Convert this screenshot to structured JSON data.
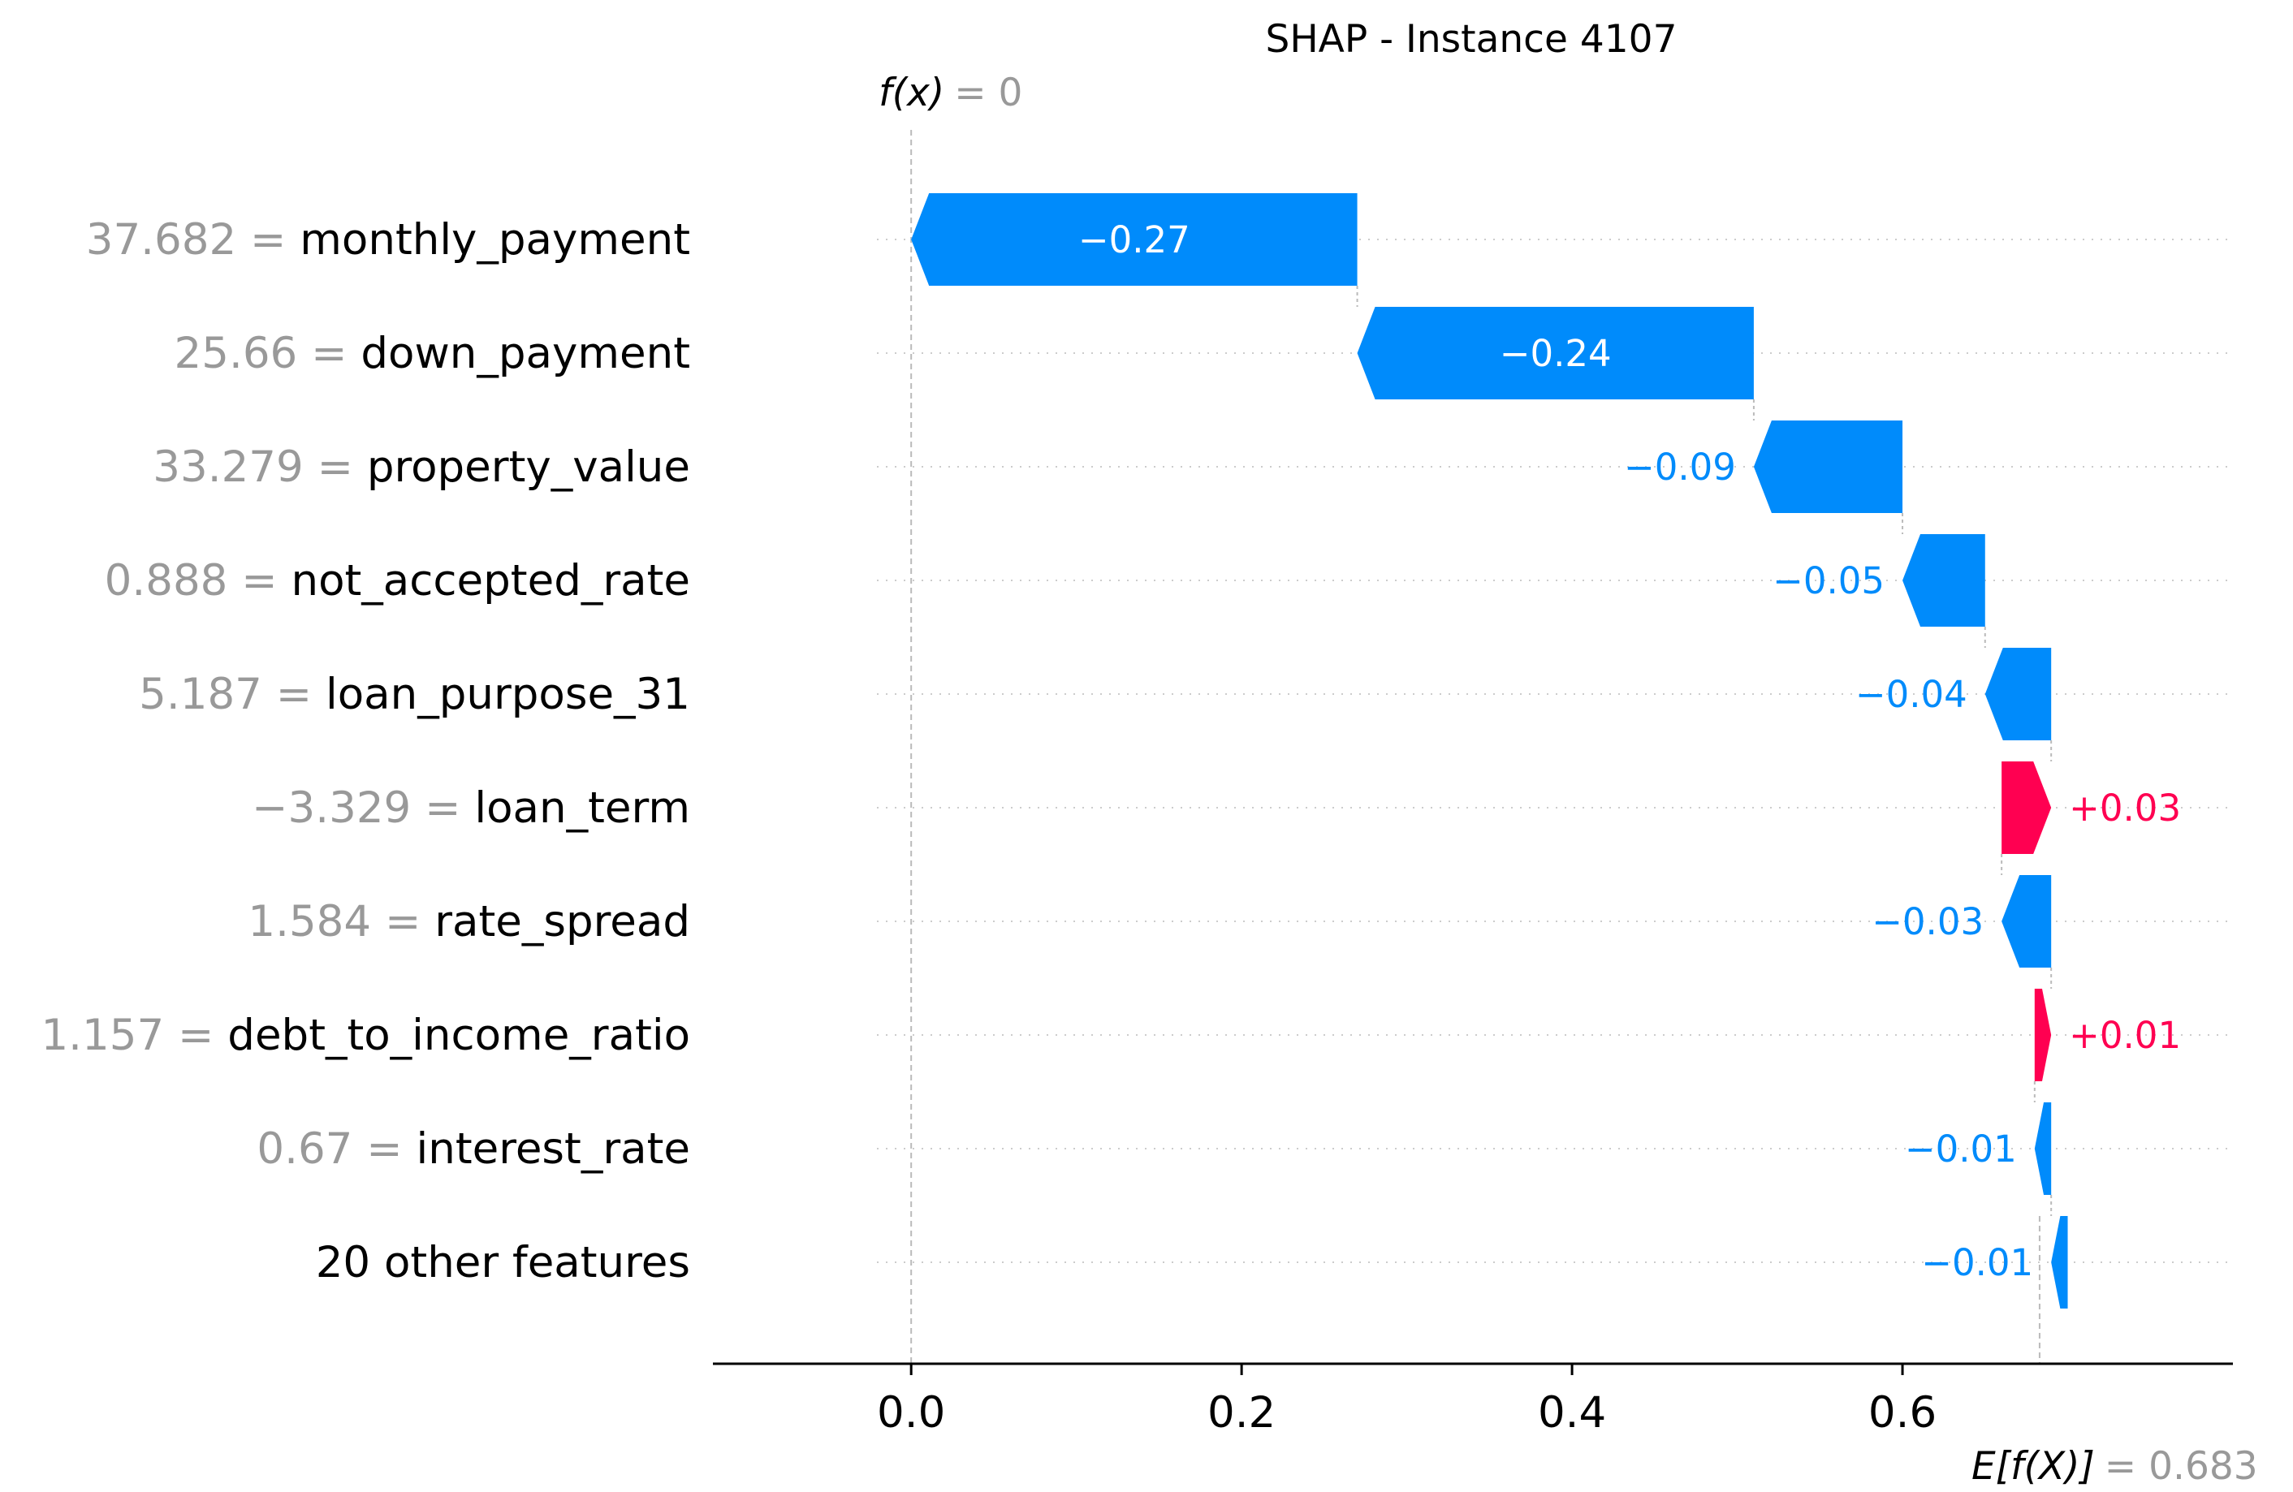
{
  "chart_data": {
    "type": "waterfall",
    "title": "SHAP - Instance 4107",
    "fx": {
      "prefix": "f(x)",
      "equals": "= ",
      "value": "0"
    },
    "efx": {
      "prefix": "E[f(X)]",
      "equals": "= ",
      "value": "0.683"
    },
    "base_value": 0.683,
    "output_value": 0.0,
    "xlim": [
      -0.12,
      0.8
    ],
    "xticks": [
      {
        "value": 0.0,
        "label": "0.0"
      },
      {
        "value": 0.2,
        "label": "0.2"
      },
      {
        "value": 0.4,
        "label": "0.4"
      },
      {
        "value": 0.6,
        "label": "0.6"
      }
    ],
    "features": [
      {
        "feature_value": "37.682 = ",
        "name": "monthly_payment",
        "contribution": -0.27,
        "label": "−0.27"
      },
      {
        "feature_value": "25.66 = ",
        "name": "down_payment",
        "contribution": -0.24,
        "label": "−0.24"
      },
      {
        "feature_value": "33.279 = ",
        "name": "property_value",
        "contribution": -0.09,
        "label": "−0.09"
      },
      {
        "feature_value": "0.888 = ",
        "name": "not_accepted_rate",
        "contribution": -0.05,
        "label": "−0.05"
      },
      {
        "feature_value": "5.187 = ",
        "name": "loan_purpose_31",
        "contribution": -0.04,
        "label": "−0.04"
      },
      {
        "feature_value": "−3.329 = ",
        "name": "loan_term",
        "contribution": 0.03,
        "label": "+0.03"
      },
      {
        "feature_value": "1.584 = ",
        "name": "rate_spread",
        "contribution": -0.03,
        "label": "−0.03"
      },
      {
        "feature_value": "1.157 = ",
        "name": "debt_to_income_ratio",
        "contribution": 0.01,
        "label": "+0.01"
      },
      {
        "feature_value": "0.67 = ",
        "name": "interest_rate",
        "contribution": -0.01,
        "label": "−0.01"
      },
      {
        "feature_value": "",
        "name": "20 other features",
        "contribution": -0.01,
        "label": "−0.01"
      }
    ],
    "colors": {
      "negative": "#008bfb",
      "positive": "#ff0051",
      "axis": "#000000",
      "muted": "#999999"
    },
    "grid": "dotted horizontal row lines"
  }
}
